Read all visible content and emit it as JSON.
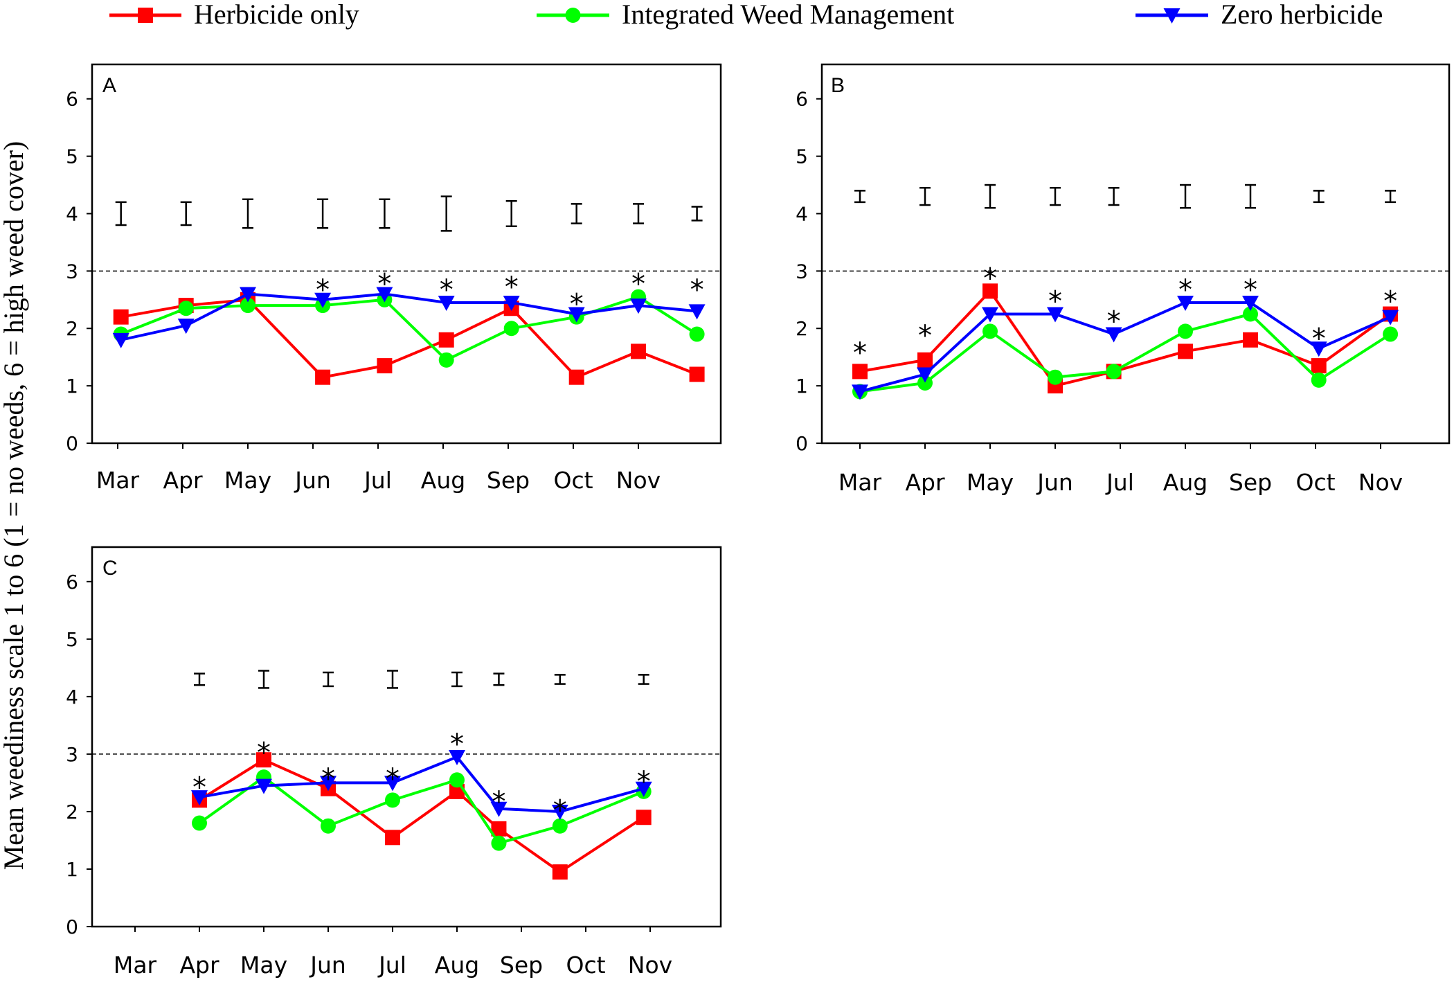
{
  "legend": [
    {
      "label": "Herbicide only",
      "color": "#ff0000",
      "marker": "square"
    },
    {
      "label": "Integrated  Weed  Management",
      "color": "#00ff00",
      "marker": "circle"
    },
    {
      "label": "Zero herbicide",
      "color": "#0000ff",
      "marker": "triangle-down"
    }
  ],
  "ylabel": "Mean weediness scale 1 to 6 (1 = no weeds,  6 = high weed cover)",
  "chart_data": [
    {
      "type": "line",
      "panel": "A",
      "x_tick_labels": [
        "Mar",
        "Apr",
        "May",
        "Jun",
        "Jul",
        "Aug",
        "Sep",
        "Oct",
        "Nov"
      ],
      "ylim": [
        0,
        6.6
      ],
      "y_ticks": [
        0,
        1,
        2,
        3,
        4,
        5,
        6
      ],
      "reference_line": 3,
      "x": [
        0.05,
        1.05,
        2.0,
        3.15,
        4.1,
        5.05,
        6.05,
        7.05,
        8.0,
        8.9
      ],
      "series": [
        {
          "name": "Herbicide only",
          "values": [
            2.2,
            2.4,
            2.5,
            1.15,
            1.35,
            1.8,
            2.35,
            1.15,
            1.6,
            1.2
          ]
        },
        {
          "name": "Integrated  Weed  Management",
          "values": [
            1.9,
            2.35,
            2.4,
            2.4,
            2.5,
            1.45,
            2.0,
            2.2,
            2.55,
            1.9
          ]
        },
        {
          "name": "Zero herbicide",
          "values": [
            1.8,
            2.05,
            2.6,
            2.5,
            2.6,
            2.45,
            2.45,
            2.25,
            2.4,
            2.3
          ]
        }
      ],
      "error_bars": [
        {
          "x": 0.05,
          "center": 4.0,
          "half": 0.2
        },
        {
          "x": 1.05,
          "center": 4.0,
          "half": 0.2
        },
        {
          "x": 2.0,
          "center": 4.0,
          "half": 0.25
        },
        {
          "x": 3.15,
          "center": 4.0,
          "half": 0.25
        },
        {
          "x": 4.1,
          "center": 4.0,
          "half": 0.25
        },
        {
          "x": 5.05,
          "center": 4.0,
          "half": 0.3
        },
        {
          "x": 6.05,
          "center": 4.0,
          "half": 0.22
        },
        {
          "x": 7.05,
          "center": 4.0,
          "half": 0.17
        },
        {
          "x": 8.0,
          "center": 4.0,
          "half": 0.17
        },
        {
          "x": 8.9,
          "center": 4.0,
          "half": 0.12
        }
      ],
      "significance": [
        {
          "x": 3.15,
          "y": 2.8,
          "label": "*"
        },
        {
          "x": 4.1,
          "y": 2.9,
          "label": "*"
        },
        {
          "x": 5.05,
          "y": 2.8,
          "label": "*"
        },
        {
          "x": 6.05,
          "y": 2.85,
          "label": "*"
        },
        {
          "x": 7.05,
          "y": 2.55,
          "label": "*"
        },
        {
          "x": 8.0,
          "y": 2.9,
          "label": "*"
        },
        {
          "x": 8.9,
          "y": 2.8,
          "label": "*"
        }
      ]
    },
    {
      "type": "line",
      "panel": "B",
      "x_tick_labels": [
        "Mar",
        "Apr",
        "May",
        "Jun",
        "Jul",
        "Aug",
        "Sep",
        "Oct",
        "Nov"
      ],
      "ylim": [
        0,
        6.6
      ],
      "y_ticks": [
        0,
        1,
        2,
        3,
        4,
        5,
        6
      ],
      "reference_line": 3,
      "x": [
        0.0,
        1.0,
        2.0,
        3.0,
        3.9,
        5.0,
        6.0,
        7.05,
        8.15
      ],
      "series": [
        {
          "name": "Herbicide only",
          "values": [
            1.25,
            1.45,
            2.65,
            1.0,
            1.25,
            1.6,
            1.8,
            1.35,
            2.25
          ]
        },
        {
          "name": "Integrated  Weed  Management",
          "values": [
            0.9,
            1.05,
            1.95,
            1.15,
            1.25,
            1.95,
            2.25,
            1.1,
            1.9
          ]
        },
        {
          "name": "Zero herbicide",
          "values": [
            0.9,
            1.2,
            2.25,
            2.25,
            1.9,
            2.45,
            2.45,
            1.65,
            2.2
          ]
        }
      ],
      "error_bars": [
        {
          "x": 0.0,
          "center": 4.3,
          "half": 0.1
        },
        {
          "x": 1.0,
          "center": 4.3,
          "half": 0.15
        },
        {
          "x": 2.0,
          "center": 4.3,
          "half": 0.2
        },
        {
          "x": 3.0,
          "center": 4.3,
          "half": 0.15
        },
        {
          "x": 3.9,
          "center": 4.3,
          "half": 0.15
        },
        {
          "x": 5.0,
          "center": 4.3,
          "half": 0.2
        },
        {
          "x": 6.0,
          "center": 4.3,
          "half": 0.2
        },
        {
          "x": 7.05,
          "center": 4.3,
          "half": 0.1
        },
        {
          "x": 8.15,
          "center": 4.3,
          "half": 0.1
        }
      ],
      "significance": [
        {
          "x": 0.0,
          "y": 1.7,
          "label": "*"
        },
        {
          "x": 1.0,
          "y": 2.0,
          "label": "*"
        },
        {
          "x": 2.0,
          "y": 3.0,
          "label": "*"
        },
        {
          "x": 3.0,
          "y": 2.6,
          "label": "*"
        },
        {
          "x": 3.9,
          "y": 2.25,
          "label": "*"
        },
        {
          "x": 5.0,
          "y": 2.8,
          "label": "*"
        },
        {
          "x": 6.0,
          "y": 2.8,
          "label": "*"
        },
        {
          "x": 7.05,
          "y": 1.95,
          "label": "*"
        },
        {
          "x": 8.15,
          "y": 2.6,
          "label": "*"
        }
      ]
    },
    {
      "type": "line",
      "panel": "C",
      "x_tick_labels": [
        "Mar",
        "Apr",
        "May",
        "Jun",
        "Jul",
        "Aug",
        "Sep",
        "Oct",
        "Nov"
      ],
      "ylim": [
        0,
        6.6
      ],
      "y_ticks": [
        0,
        1,
        2,
        3,
        4,
        5,
        6
      ],
      "reference_line": 3,
      "x": [
        1.0,
        2.0,
        3.0,
        4.0,
        5.0,
        5.65,
        6.6,
        7.9
      ],
      "series": [
        {
          "name": "Herbicide only",
          "values": [
            2.2,
            2.9,
            2.4,
            1.55,
            2.35,
            1.7,
            0.95,
            1.9
          ]
        },
        {
          "name": "Integrated  Weed  Management",
          "values": [
            1.8,
            2.6,
            1.75,
            2.2,
            2.55,
            1.45,
            1.75,
            2.35
          ]
        },
        {
          "name": "Zero herbicide",
          "values": [
            2.25,
            2.45,
            2.5,
            2.5,
            2.95,
            2.05,
            2.0,
            2.4
          ]
        }
      ],
      "error_bars": [
        {
          "x": 1.0,
          "center": 4.3,
          "half": 0.1
        },
        {
          "x": 2.0,
          "center": 4.3,
          "half": 0.15
        },
        {
          "x": 3.0,
          "center": 4.3,
          "half": 0.12
        },
        {
          "x": 4.0,
          "center": 4.3,
          "half": 0.15
        },
        {
          "x": 5.0,
          "center": 4.3,
          "half": 0.12
        },
        {
          "x": 5.65,
          "center": 4.3,
          "half": 0.1
        },
        {
          "x": 6.6,
          "center": 4.3,
          "half": 0.08
        },
        {
          "x": 7.9,
          "center": 4.3,
          "half": 0.08
        }
      ],
      "significance": [
        {
          "x": 1.0,
          "y": 2.55,
          "label": "*"
        },
        {
          "x": 2.0,
          "y": 3.15,
          "label": "*"
        },
        {
          "x": 3.0,
          "y": 2.7,
          "label": "*"
        },
        {
          "x": 4.0,
          "y": 2.7,
          "label": "*"
        },
        {
          "x": 5.0,
          "y": 3.3,
          "label": "*"
        },
        {
          "x": 5.65,
          "y": 2.3,
          "label": "*"
        },
        {
          "x": 6.6,
          "y": 2.15,
          "label": "*"
        },
        {
          "x": 7.9,
          "y": 2.65,
          "label": "*"
        }
      ]
    }
  ]
}
